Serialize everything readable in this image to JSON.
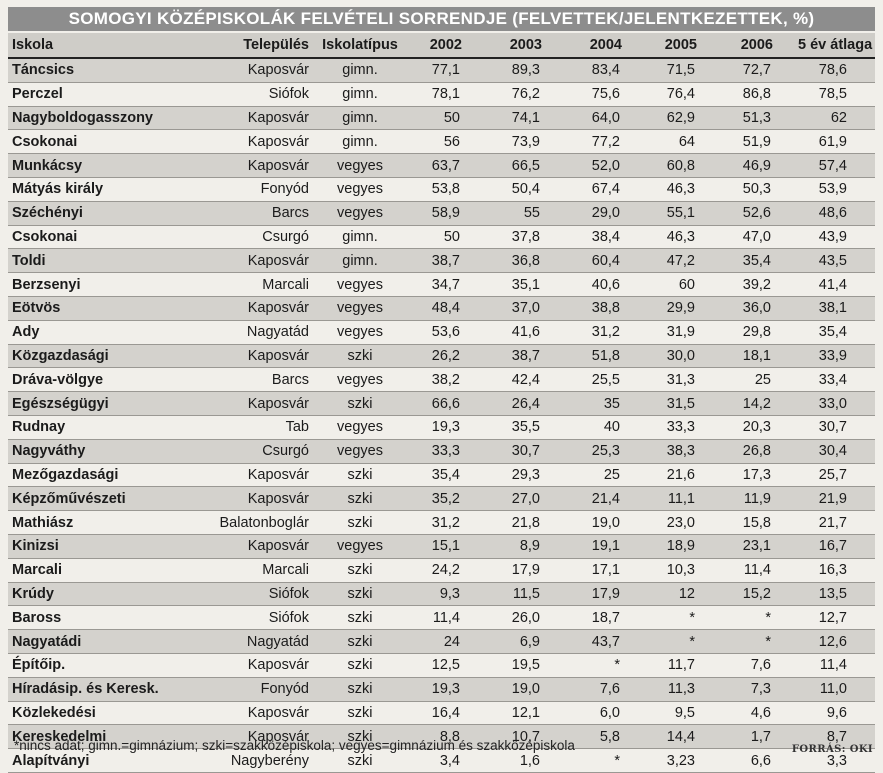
{
  "title": "SOMOGYI KÖZÉPISKOLÁK FELVÉTELI SORRENDJE (FELVETTEK/JELENTKEZETTEK, %)",
  "headers": [
    "Iskola",
    "Település",
    "Iskolatípus",
    "2002",
    "2003",
    "2004",
    "2005",
    "2006",
    "5 év átlaga"
  ],
  "rows": [
    [
      "Táncsics",
      "Kaposvár",
      "gimn.",
      "77,1",
      "89,3",
      "83,4",
      "71,5",
      "72,7",
      "78,6"
    ],
    [
      "Perczel",
      "Siófok",
      "gimn.",
      "78,1",
      "76,2",
      "75,6",
      "76,4",
      "86,8",
      "78,5"
    ],
    [
      "Nagyboldogasszony",
      "Kaposvár",
      "gimn.",
      "50",
      "74,1",
      "64,0",
      "62,9",
      "51,3",
      "62"
    ],
    [
      "Csokonai",
      "Kaposvár",
      "gimn.",
      "56",
      "73,9",
      "77,2",
      "64",
      "51,9",
      "61,9"
    ],
    [
      "Munkácsy",
      "Kaposvár",
      "vegyes",
      "63,7",
      "66,5",
      "52,0",
      "60,8",
      "46,9",
      "57,4"
    ],
    [
      "Mátyás király",
      "Fonyód",
      "vegyes",
      "53,8",
      "50,4",
      "67,4",
      "46,3",
      "50,3",
      "53,9"
    ],
    [
      "Széchényi",
      "Barcs",
      "vegyes",
      "58,9",
      "55",
      "29,0",
      "55,1",
      "52,6",
      "48,6"
    ],
    [
      "Csokonai",
      "Csurgó",
      "gimn.",
      "50",
      "37,8",
      "38,4",
      "46,3",
      "47,0",
      "43,9"
    ],
    [
      "Toldi",
      "Kaposvár",
      "gimn.",
      "38,7",
      "36,8",
      "60,4",
      "47,2",
      "35,4",
      "43,5"
    ],
    [
      "Berzsenyi",
      "Marcali",
      "vegyes",
      "34,7",
      "35,1",
      "40,6",
      "60",
      "39,2",
      "41,4"
    ],
    [
      "Eötvös",
      "Kaposvár",
      "vegyes",
      "48,4",
      "37,0",
      "38,8",
      "29,9",
      "36,0",
      "38,1"
    ],
    [
      "Ady",
      "Nagyatád",
      "vegyes",
      "53,6",
      "41,6",
      "31,2",
      "31,9",
      "29,8",
      "35,4"
    ],
    [
      "Közgazdasági",
      "Kaposvár",
      "szki",
      "26,2",
      "38,7",
      "51,8",
      "30,0",
      "18,1",
      "33,9"
    ],
    [
      "Dráva-völgye",
      "Barcs",
      "vegyes",
      "38,2",
      "42,4",
      "25,5",
      "31,3",
      "25",
      "33,4"
    ],
    [
      "Egészségügyi",
      "Kaposvár",
      "szki",
      "66,6",
      "26,4",
      "35",
      "31,5",
      "14,2",
      "33,0"
    ],
    [
      "Rudnay",
      "Tab",
      "vegyes",
      "19,3",
      "35,5",
      "40",
      "33,3",
      "20,3",
      "30,7"
    ],
    [
      "Nagyváthy",
      "Csurgó",
      "vegyes",
      "33,3",
      "30,7",
      "25,3",
      "38,3",
      "26,8",
      "30,4"
    ],
    [
      "Mezőgazdasági",
      "Kaposvár",
      "szki",
      "35,4",
      "29,3",
      "25",
      "21,6",
      "17,3",
      "25,7"
    ],
    [
      "Képzőművészeti",
      "Kaposvár",
      "szki",
      "35,2",
      "27,0",
      "21,4",
      "11,1",
      "11,9",
      "21,9"
    ],
    [
      "Mathiász",
      "Balatonboglár",
      "szki",
      "31,2",
      "21,8",
      "19,0",
      "23,0",
      "15,8",
      "21,7"
    ],
    [
      "Kinizsi",
      "Kaposvár",
      "vegyes",
      "15,1",
      "8,9",
      "19,1",
      "18,9",
      "23,1",
      "16,7"
    ],
    [
      "Marcali",
      "Marcali",
      "szki",
      "24,2",
      "17,9",
      "17,1",
      "10,3",
      "11,4",
      "16,3"
    ],
    [
      "Krúdy",
      "Siófok",
      "szki",
      "9,3",
      "11,5",
      "17,9",
      "12",
      "15,2",
      "13,5"
    ],
    [
      "Baross",
      "Siófok",
      "szki",
      "11,4",
      "26,0",
      "18,7",
      "*",
      "*",
      "12,7"
    ],
    [
      "Nagyatádi",
      "Nagyatád",
      "szki",
      "24",
      "6,9",
      "43,7",
      "*",
      "*",
      "12,6"
    ],
    [
      "Építőip.",
      "Kaposvár",
      "szki",
      "12,5",
      "19,5",
      "*",
      "11,7",
      "7,6",
      "11,4"
    ],
    [
      "Híradásip. és Keresk.",
      "Fonyód",
      "szki",
      "19,3",
      "19,0",
      "7,6",
      "11,3",
      "7,3",
      "11,0"
    ],
    [
      "Közlekedési",
      "Kaposvár",
      "szki",
      "16,4",
      "12,1",
      "6,0",
      "9,5",
      "4,6",
      "9,6"
    ],
    [
      "Kereskedelmi",
      "Kaposvár",
      "szki",
      "8,8",
      "10,7",
      "5,8",
      "14,4",
      "1,7",
      "8,7"
    ],
    [
      "Alapítványi",
      "Nagyberény",
      "szki",
      "3,4",
      "1,6",
      "*",
      "3,23",
      "6,6",
      "3,3"
    ]
  ],
  "footnote": "*nincs adat; gimn.=gimnázium; szki=szakközépiskola; vegyes=gimnázium és szakközépiskola",
  "source": "FORRÁS: OKI"
}
